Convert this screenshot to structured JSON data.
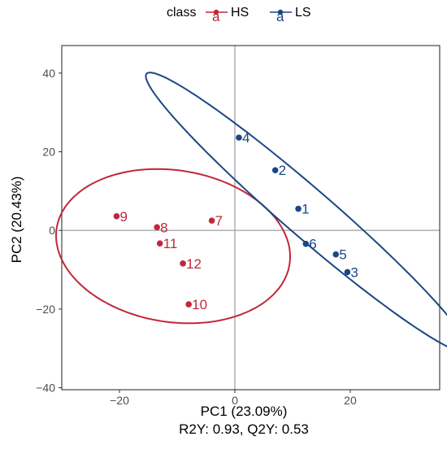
{
  "chart_data": {
    "type": "scatter",
    "title": "",
    "xlabel": "PC1 (23.09%)",
    "ylabel": "PC2 (20.43%)",
    "caption": "R2Y: 0.93, Q2Y: 0.53",
    "xlim": [
      -30,
      35.5
    ],
    "ylim": [
      -40.5,
      47
    ],
    "x_ticks": [
      -20,
      0,
      20
    ],
    "y_ticks": [
      40,
      20,
      0,
      -20,
      -40
    ],
    "x_tick_labels": [
      "−20",
      "0",
      "20"
    ],
    "y_tick_labels": [
      "40",
      "20",
      "0",
      "−20",
      "−40"
    ],
    "grid": false,
    "reference_lines": {
      "x": 0,
      "y": 0
    },
    "legend": {
      "title": "class",
      "position": "top",
      "key_glyph": "a"
    },
    "series": [
      {
        "name": "HS",
        "color": "#c0283a",
        "points": [
          {
            "label": "7",
            "x": -4.0,
            "y": 2.5
          },
          {
            "label": "8",
            "x": -13.5,
            "y": 0.8
          },
          {
            "label": "9",
            "x": -20.5,
            "y": 3.6
          },
          {
            "label": "10",
            "x": -8.0,
            "y": -18.8
          },
          {
            "label": "11",
            "x": -13.0,
            "y": -3.3
          },
          {
            "label": "12",
            "x": -9.0,
            "y": -8.4
          }
        ],
        "ellipse": {
          "cx": -10.7,
          "cy": -4.0,
          "rx": 21.3,
          "ry": 18.5,
          "angle": -38
        }
      },
      {
        "name": "LS",
        "color": "#1a4784",
        "points": [
          {
            "label": "1",
            "x": 11.0,
            "y": 5.5
          },
          {
            "label": "2",
            "x": 7.0,
            "y": 15.3
          },
          {
            "label": "3",
            "x": 19.5,
            "y": -10.6
          },
          {
            "label": "4",
            "x": 0.7,
            "y": 23.6
          },
          {
            "label": "5",
            "x": 17.5,
            "y": -6.1
          },
          {
            "label": "6",
            "x": 12.3,
            "y": -3.4
          }
        ],
        "ellipse": {
          "cx": 12.55,
          "cy": 4.55,
          "rx": 45.0,
          "ry": 5.0,
          "angle": -52
        }
      }
    ]
  }
}
